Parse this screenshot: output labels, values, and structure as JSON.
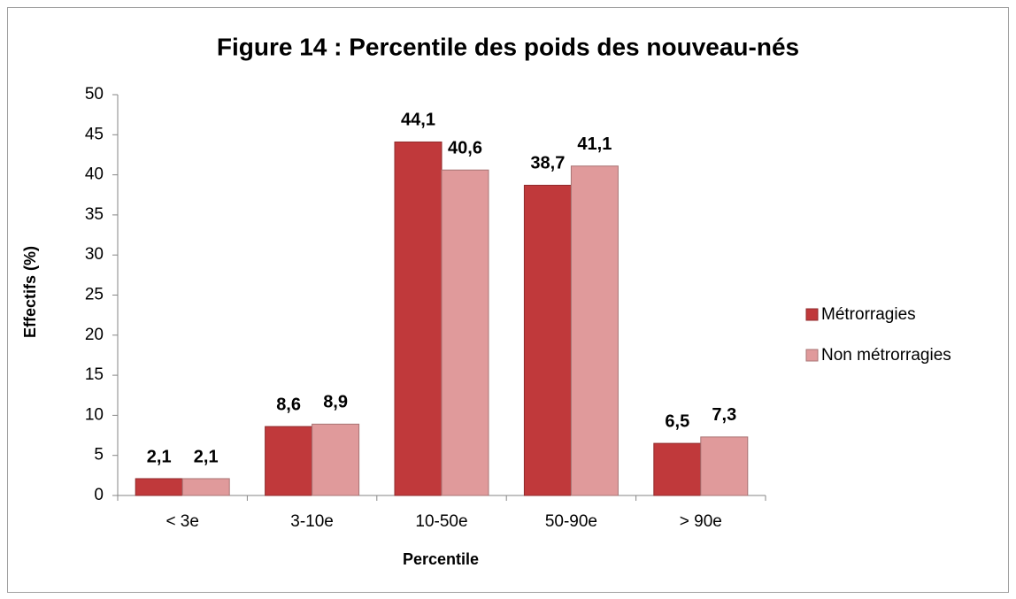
{
  "chart_data": {
    "type": "bar",
    "title": "Figure 14 : Percentile des poids des nouveau-nés",
    "x_label": "Percentile",
    "y_label": "Effectifs (%)",
    "categories": [
      "< 3e",
      "3-10e",
      "10-50e",
      "50-90e",
      "> 90e"
    ],
    "series": [
      {
        "name": "Métrorragies",
        "color": "#c0393b",
        "values": [
          2.1,
          8.6,
          44.1,
          38.7,
          6.5
        ],
        "value_labels": [
          "2,1",
          "8,6",
          "44,1",
          "38,7",
          "6,5"
        ]
      },
      {
        "name": "Non métrorragies",
        "color": "#e09a9b",
        "values": [
          2.1,
          8.9,
          40.6,
          41.1,
          7.3
        ],
        "value_labels": [
          "2,1",
          "8,9",
          "40,6",
          "41,1",
          "7,3"
        ]
      }
    ],
    "ylim": [
      0,
      50
    ],
    "yticks": [
      0,
      5,
      10,
      15,
      20,
      25,
      30,
      35,
      40,
      45,
      50
    ],
    "grid": false,
    "legend": "right"
  }
}
